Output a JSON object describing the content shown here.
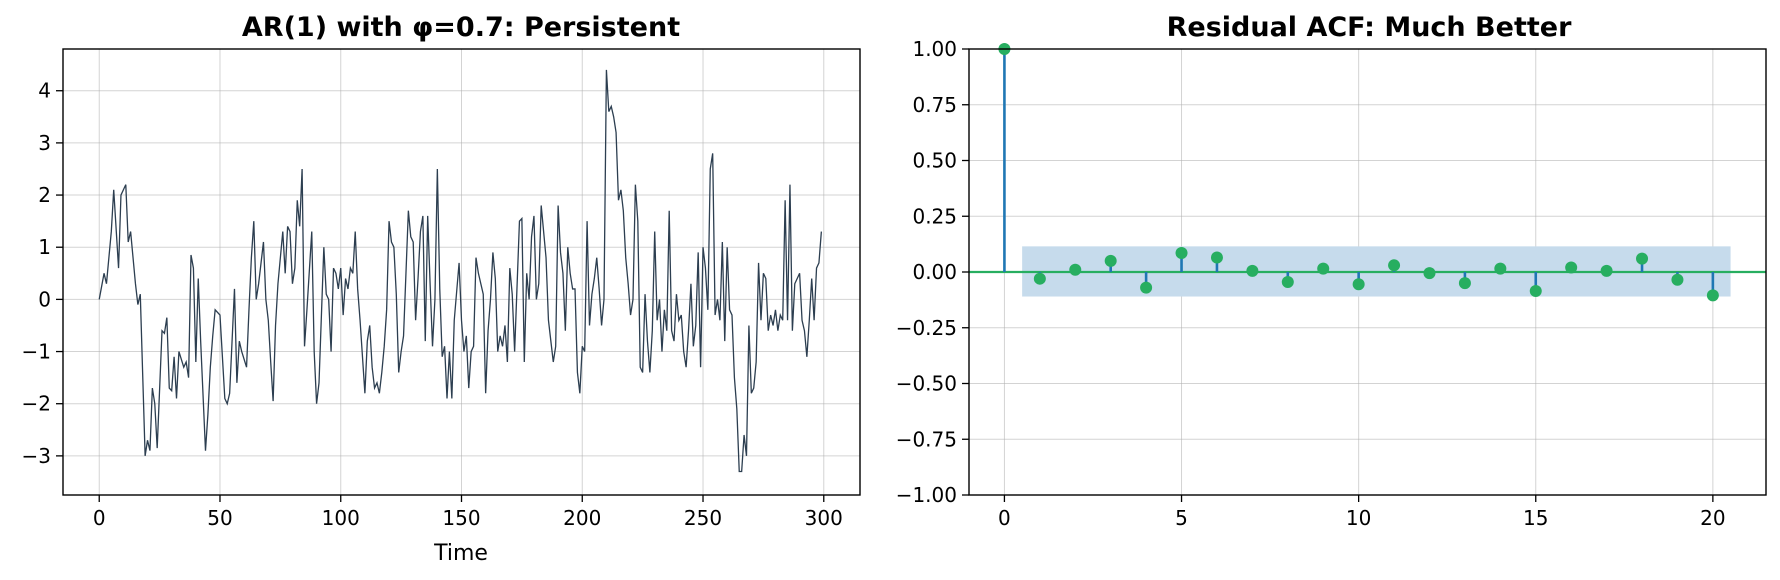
{
  "colors": {
    "ar_line": "#2c3e50",
    "stem": "#1f77b4",
    "marker": "#27ae60",
    "baseline": "#27ae60",
    "conf_band": "#c6dbec"
  },
  "chart_data": [
    {
      "type": "line",
      "title": "AR(1) with φ=0.7: Persistent",
      "xlabel": "Time",
      "ylabel": "",
      "xlim": [
        -15,
        315
      ],
      "ylim": [
        -3.75,
        4.8
      ],
      "xticks": [
        0,
        50,
        100,
        150,
        200,
        250,
        300
      ],
      "yticks": [
        -3,
        -2,
        -1,
        0,
        1,
        2,
        3,
        4
      ],
      "grid": true,
      "anchors": [
        [
          0,
          0
        ],
        [
          2,
          0.5
        ],
        [
          3,
          0.3
        ],
        [
          5,
          1.3
        ],
        [
          6,
          2.1
        ],
        [
          8,
          0.6
        ],
        [
          9,
          2.0
        ],
        [
          11,
          2.2
        ],
        [
          12,
          1.1
        ],
        [
          13,
          1.3
        ],
        [
          15,
          0.3
        ],
        [
          16,
          -0.1
        ],
        [
          17,
          0.1
        ],
        [
          19,
          -3.0
        ],
        [
          20,
          -2.7
        ],
        [
          21,
          -2.9
        ],
        [
          22,
          -1.7
        ],
        [
          23,
          -2.0
        ],
        [
          24,
          -2.85
        ],
        [
          26,
          -0.6
        ],
        [
          27,
          -0.65
        ],
        [
          28,
          -0.35
        ],
        [
          29,
          -1.7
        ],
        [
          30,
          -1.75
        ],
        [
          31,
          -1.1
        ],
        [
          32,
          -1.9
        ],
        [
          33,
          -1.0
        ],
        [
          35,
          -1.3
        ],
        [
          36,
          -1.2
        ],
        [
          37,
          -1.5
        ],
        [
          38,
          0.85
        ],
        [
          39,
          0.6
        ],
        [
          40,
          -1.2
        ],
        [
          41,
          0.4
        ],
        [
          42,
          -0.8
        ],
        [
          44,
          -2.9
        ],
        [
          45,
          -2.2
        ],
        [
          46,
          -1.3
        ],
        [
          47,
          -0.7
        ],
        [
          48,
          -0.2
        ],
        [
          50,
          -0.3
        ],
        [
          52,
          -1.9
        ],
        [
          53,
          -2.0
        ],
        [
          54,
          -1.8
        ],
        [
          56,
          0.2
        ],
        [
          57,
          -1.6
        ],
        [
          58,
          -0.8
        ],
        [
          59,
          -1.0
        ],
        [
          61,
          -1.3
        ],
        [
          62,
          -0.2
        ],
        [
          63,
          0.8
        ],
        [
          64,
          1.5
        ],
        [
          65,
          0.0
        ],
        [
          66,
          0.3
        ],
        [
          68,
          1.1
        ],
        [
          69,
          0.0
        ],
        [
          70,
          -0.4
        ],
        [
          71,
          -1.2
        ],
        [
          72,
          -1.95
        ],
        [
          73,
          -0.5
        ],
        [
          74,
          0.3
        ],
        [
          76,
          1.3
        ],
        [
          77,
          0.5
        ],
        [
          78,
          1.4
        ],
        [
          79,
          1.3
        ],
        [
          80,
          0.3
        ],
        [
          81,
          0.6
        ],
        [
          82,
          1.9
        ],
        [
          83,
          1.4
        ],
        [
          84,
          2.5
        ],
        [
          85,
          -0.9
        ],
        [
          86,
          -0.2
        ],
        [
          88,
          1.3
        ],
        [
          89,
          -1.0
        ],
        [
          90,
          -2.0
        ],
        [
          91,
          -1.6
        ],
        [
          92,
          -0.3
        ],
        [
          93,
          1.0
        ],
        [
          94,
          0.1
        ],
        [
          95,
          0.0
        ],
        [
          96,
          -1.0
        ],
        [
          97,
          0.6
        ],
        [
          98,
          0.5
        ],
        [
          99,
          0.2
        ],
        [
          100,
          0.6
        ],
        [
          101,
          -0.3
        ],
        [
          102,
          0.4
        ],
        [
          103,
          0.2
        ],
        [
          104,
          0.6
        ],
        [
          105,
          0.5
        ],
        [
          106,
          1.3
        ],
        [
          107,
          0.2
        ],
        [
          108,
          -0.4
        ],
        [
          110,
          -1.8
        ],
        [
          111,
          -0.8
        ],
        [
          112,
          -0.5
        ],
        [
          113,
          -1.3
        ],
        [
          114,
          -1.7
        ],
        [
          115,
          -1.6
        ],
        [
          116,
          -1.8
        ],
        [
          117,
          -1.4
        ],
        [
          118,
          -0.9
        ],
        [
          119,
          -0.2
        ],
        [
          120,
          1.5
        ],
        [
          121,
          1.1
        ],
        [
          122,
          1.0
        ],
        [
          123,
          0.1
        ],
        [
          124,
          -1.4
        ],
        [
          125,
          -1.0
        ],
        [
          126,
          -0.7
        ],
        [
          128,
          1.7
        ],
        [
          129,
          1.2
        ],
        [
          130,
          1.1
        ],
        [
          131,
          -0.4
        ],
        [
          132,
          0.4
        ],
        [
          133,
          1.3
        ],
        [
          134,
          1.6
        ],
        [
          135,
          -0.8
        ],
        [
          136,
          1.6
        ],
        [
          137,
          0.3
        ],
        [
          138,
          -0.9
        ],
        [
          139,
          0.0
        ],
        [
          140,
          2.5
        ],
        [
          141,
          0.2
        ],
        [
          142,
          -1.1
        ],
        [
          143,
          -0.9
        ],
        [
          144,
          -1.9
        ],
        [
          145,
          -1.0
        ],
        [
          146,
          -1.9
        ],
        [
          147,
          -0.4
        ],
        [
          149,
          0.7
        ],
        [
          150,
          -0.4
        ],
        [
          151,
          -1.0
        ],
        [
          152,
          -0.7
        ],
        [
          153,
          -1.7
        ],
        [
          154,
          -1.0
        ],
        [
          155,
          -0.9
        ],
        [
          156,
          0.8
        ],
        [
          157,
          0.5
        ],
        [
          159,
          0.1
        ],
        [
          160,
          -1.8
        ],
        [
          161,
          -0.6
        ],
        [
          162,
          0.0
        ],
        [
          163,
          0.9
        ],
        [
          164,
          0.4
        ],
        [
          165,
          -1.0
        ],
        [
          166,
          -0.7
        ],
        [
          167,
          -0.9
        ],
        [
          168,
          -0.5
        ],
        [
          169,
          -1.2
        ],
        [
          170,
          0.6
        ],
        [
          171,
          0.1
        ],
        [
          172,
          -1.0
        ],
        [
          174,
          1.5
        ],
        [
          175,
          1.55
        ],
        [
          176,
          -1.2
        ],
        [
          177,
          0.5
        ],
        [
          178,
          0.0
        ],
        [
          179,
          1.2
        ],
        [
          180,
          1.6
        ],
        [
          181,
          0.0
        ],
        [
          182,
          0.3
        ],
        [
          183,
          1.8
        ],
        [
          185,
          0.8
        ],
        [
          186,
          -0.4
        ],
        [
          187,
          -0.8
        ],
        [
          188,
          -1.2
        ],
        [
          189,
          -0.9
        ],
        [
          190,
          1.8
        ],
        [
          191,
          0.9
        ],
        [
          192,
          0.5
        ],
        [
          193,
          -0.6
        ],
        [
          194,
          1.0
        ],
        [
          195,
          0.5
        ],
        [
          196,
          0.2
        ],
        [
          197,
          0.2
        ],
        [
          198,
          -1.4
        ],
        [
          199,
          -1.8
        ],
        [
          200,
          -0.9
        ],
        [
          201,
          -1.0
        ],
        [
          202,
          1.5
        ],
        [
          203,
          -0.5
        ],
        [
          204,
          0.1
        ],
        [
          205,
          0.4
        ],
        [
          206,
          0.8
        ],
        [
          207,
          0.2
        ],
        [
          208,
          -0.5
        ],
        [
          209,
          0.0
        ],
        [
          210,
          4.4
        ],
        [
          211,
          3.6
        ],
        [
          212,
          3.7
        ],
        [
          213,
          3.5
        ],
        [
          214,
          3.2
        ],
        [
          215,
          1.9
        ],
        [
          216,
          2.1
        ],
        [
          217,
          1.7
        ],
        [
          218,
          0.8
        ],
        [
          219,
          0.3
        ],
        [
          220,
          -0.3
        ],
        [
          221,
          0.0
        ],
        [
          222,
          2.2
        ],
        [
          223,
          1.5
        ],
        [
          224,
          -1.3
        ],
        [
          225,
          -1.4
        ],
        [
          226,
          0.1
        ],
        [
          227,
          -0.8
        ],
        [
          228,
          -1.4
        ],
        [
          229,
          -0.6
        ],
        [
          230,
          1.3
        ],
        [
          231,
          -0.4
        ],
        [
          232,
          0.0
        ],
        [
          233,
          -1.0
        ],
        [
          234,
          -0.2
        ],
        [
          235,
          -0.6
        ],
        [
          236,
          1.7
        ],
        [
          237,
          -0.6
        ],
        [
          238,
          -0.8
        ],
        [
          239,
          0.1
        ],
        [
          240,
          -0.4
        ],
        [
          241,
          -0.3
        ],
        [
          242,
          -1.0
        ],
        [
          243,
          -1.3
        ],
        [
          244,
          -0.6
        ],
        [
          245,
          0.3
        ],
        [
          246,
          -0.9
        ],
        [
          247,
          -0.5
        ],
        [
          248,
          0.9
        ],
        [
          249,
          -1.3
        ],
        [
          250,
          1.0
        ],
        [
          251,
          0.6
        ],
        [
          252,
          -0.2
        ],
        [
          253,
          2.5
        ],
        [
          254,
          2.8
        ],
        [
          255,
          -0.3
        ],
        [
          256,
          0.0
        ],
        [
          257,
          -0.4
        ],
        [
          258,
          1.1
        ],
        [
          259,
          -0.8
        ],
        [
          260,
          1.0
        ],
        [
          261,
          -0.2
        ],
        [
          262,
          -0.3
        ],
        [
          263,
          -1.5
        ],
        [
          264,
          -2.1
        ],
        [
          265,
          -3.3
        ],
        [
          266,
          -3.3
        ],
        [
          267,
          -2.6
        ],
        [
          268,
          -3.0
        ],
        [
          269,
          -0.5
        ],
        [
          270,
          -1.8
        ],
        [
          271,
          -1.7
        ],
        [
          272,
          -1.2
        ],
        [
          273,
          0.7
        ],
        [
          274,
          -0.4
        ],
        [
          275,
          0.5
        ],
        [
          276,
          0.4
        ],
        [
          277,
          -0.6
        ],
        [
          278,
          -0.3
        ],
        [
          279,
          -0.5
        ],
        [
          280,
          -0.2
        ],
        [
          281,
          -0.6
        ],
        [
          282,
          -0.3
        ],
        [
          283,
          -0.4
        ],
        [
          284,
          1.9
        ],
        [
          285,
          -0.4
        ],
        [
          286,
          2.2
        ],
        [
          287,
          -0.6
        ],
        [
          288,
          0.3
        ],
        [
          289,
          0.4
        ],
        [
          290,
          0.5
        ],
        [
          291,
          -0.4
        ],
        [
          292,
          -0.6
        ],
        [
          293,
          -1.1
        ],
        [
          294,
          -0.4
        ],
        [
          295,
          0.4
        ],
        [
          296,
          -0.4
        ],
        [
          297,
          0.6
        ],
        [
          298,
          0.7
        ],
        [
          299,
          1.3
        ]
      ]
    },
    {
      "type": "stem",
      "title": "Residual ACF: Much Better",
      "xlabel": "",
      "ylabel": "",
      "xlim": [
        -1,
        21.5
      ],
      "ylim": [
        -1.0,
        1.0
      ],
      "xticks": [
        0,
        5,
        10,
        15,
        20
      ],
      "yticks": [
        -1.0,
        -0.75,
        -0.5,
        -0.25,
        0.0,
        0.25,
        0.5,
        0.75,
        1.0
      ],
      "ytick_labels": [
        "−1.00",
        "−0.75",
        "−0.50",
        "−0.25",
        "0.00",
        "0.25",
        "0.50",
        "0.75",
        "1.00"
      ],
      "grid": true,
      "lags": [
        0,
        1,
        2,
        3,
        4,
        5,
        6,
        7,
        8,
        9,
        10,
        11,
        12,
        13,
        14,
        15,
        16,
        17,
        18,
        19,
        20
      ],
      "values": [
        1.0,
        -0.03,
        0.01,
        0.05,
        -0.07,
        0.085,
        0.065,
        0.005,
        -0.045,
        0.015,
        -0.055,
        0.03,
        -0.005,
        -0.05,
        0.015,
        -0.085,
        0.02,
        0.005,
        0.06,
        -0.035,
        -0.105
      ],
      "conf_band": {
        "lag_start": 0.5,
        "lag_end": 20.5,
        "lower": -0.11,
        "upper": 0.115
      }
    }
  ]
}
